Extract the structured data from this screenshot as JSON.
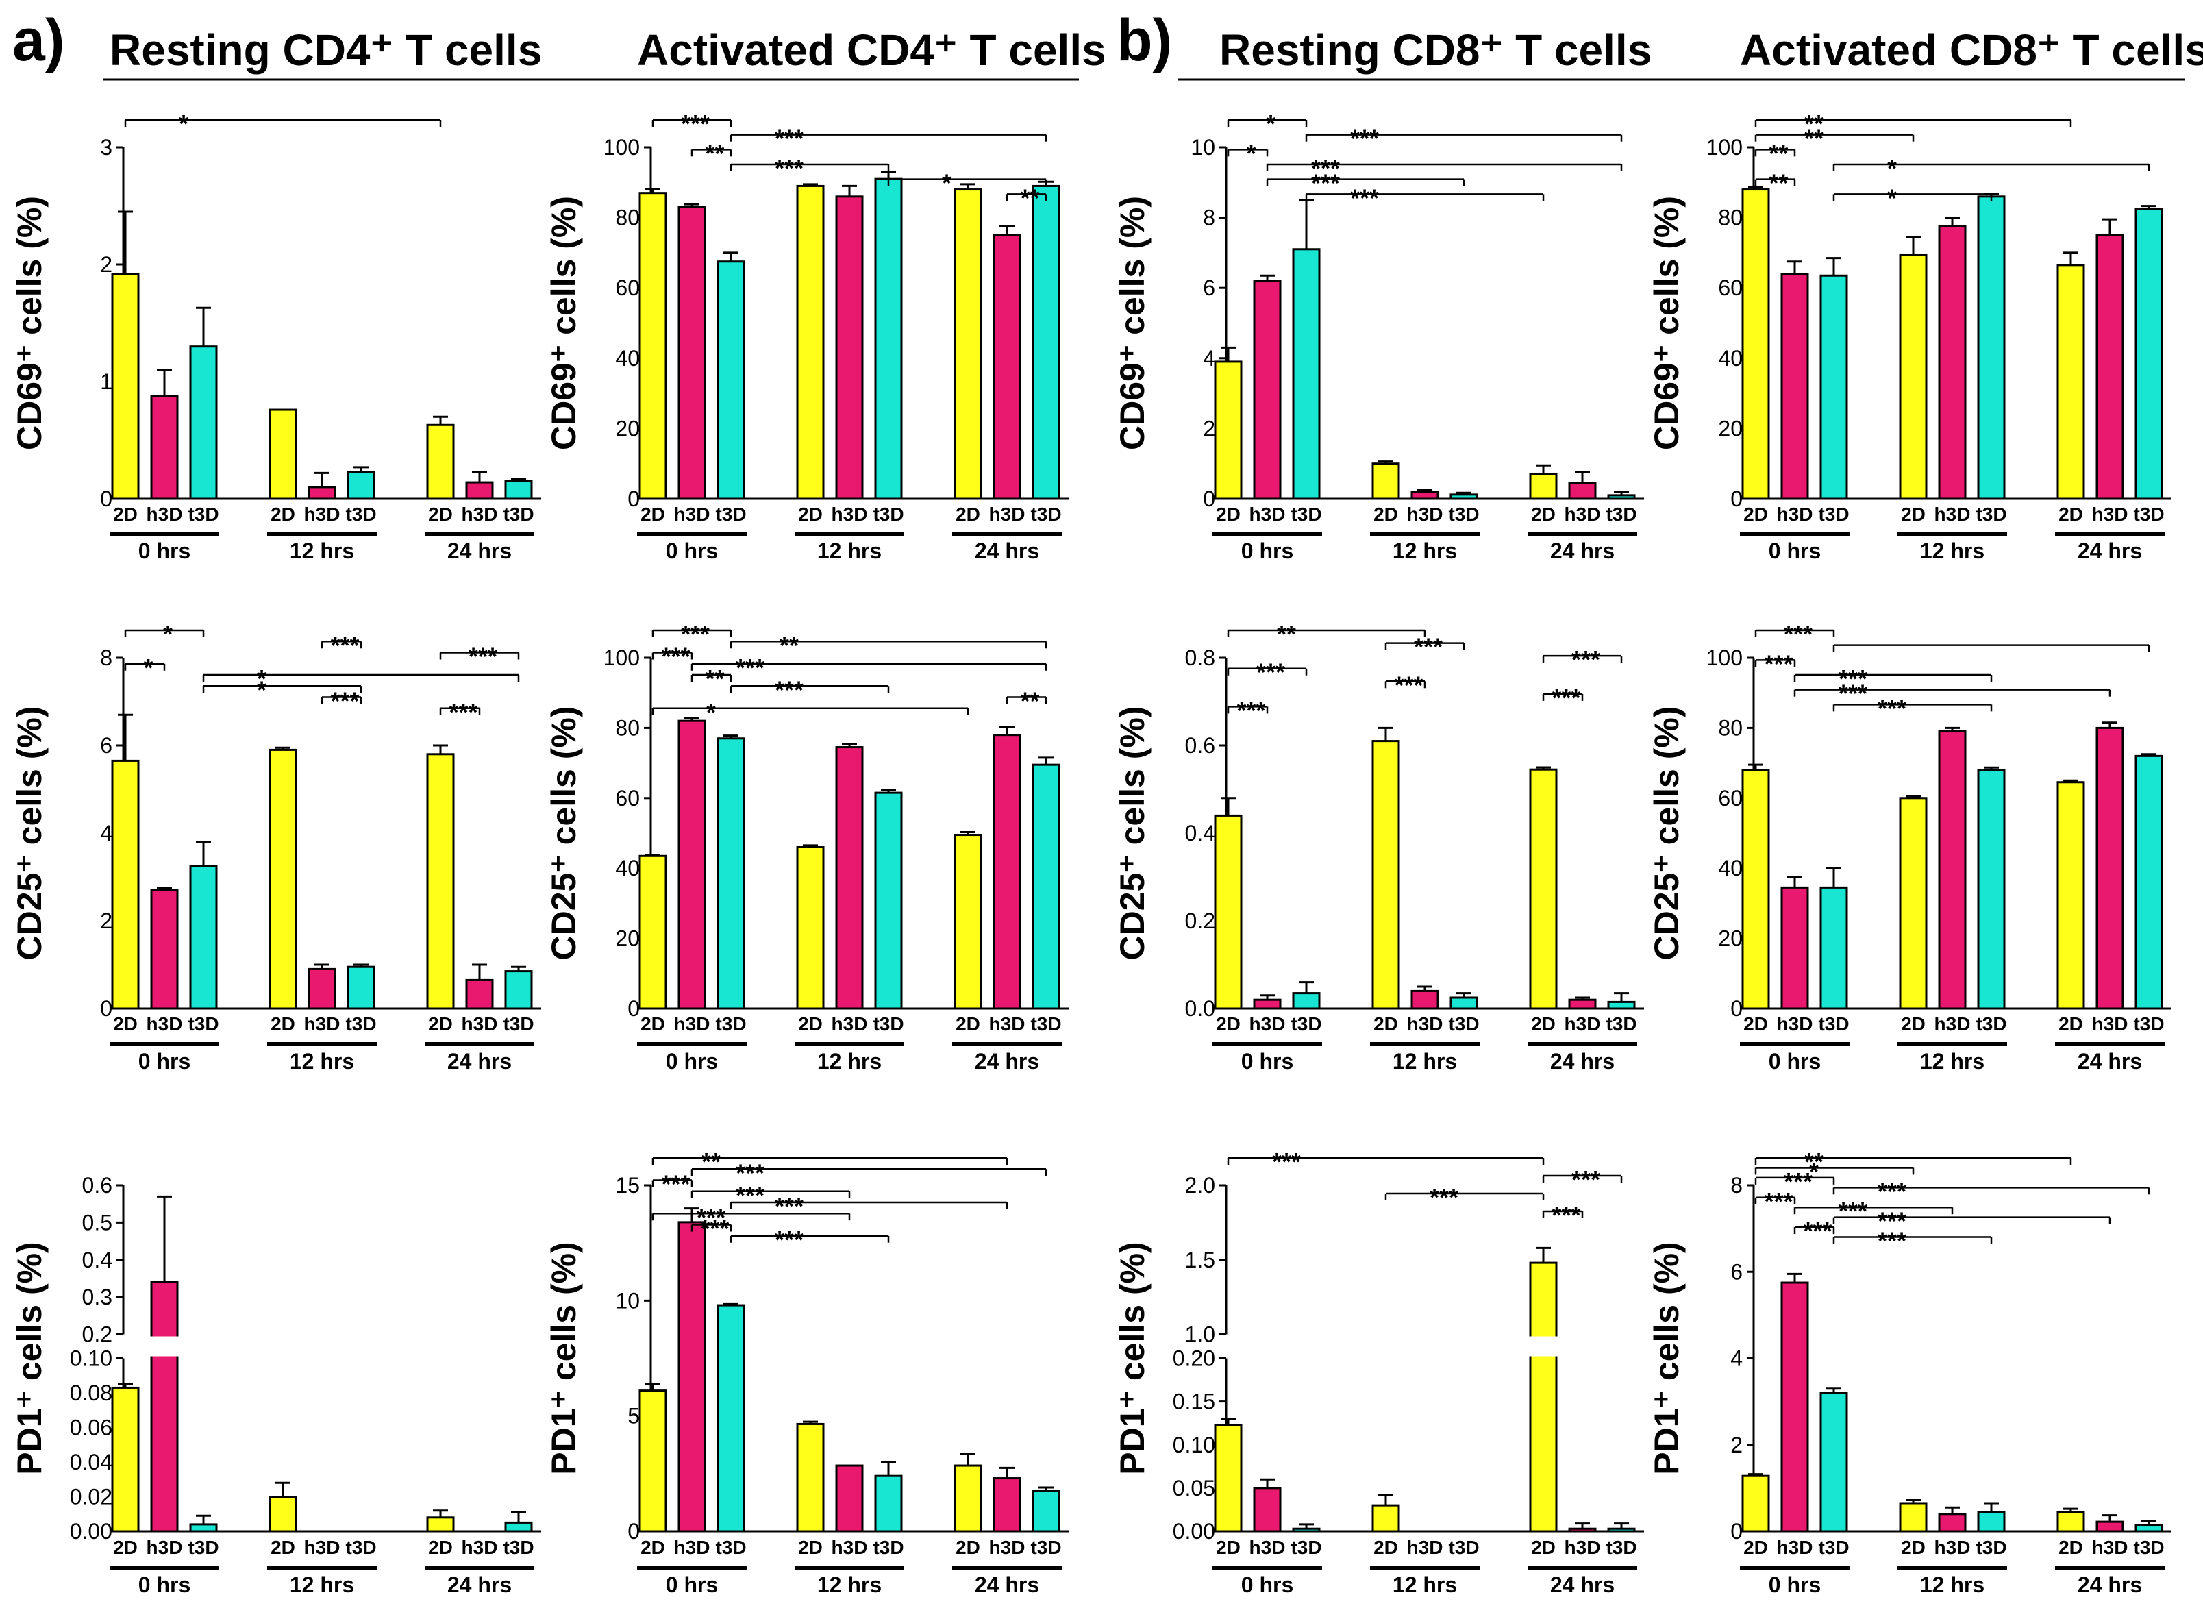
{
  "figure": {
    "panel_labels": [
      "a)",
      "b)"
    ],
    "column_titles": [
      "Resting CD4⁺ T cells",
      "Activated  CD4⁺ T cells",
      "Resting CD8⁺ T cells",
      "Activated CD8⁺ T cells"
    ],
    "row_labels": [
      "CD69⁺ cells (%)",
      "CD25⁺ cells (%)",
      "PD1⁺ cells (%)"
    ],
    "sample_labels": [
      "2D",
      "h3D",
      "t3D"
    ],
    "time_labels": [
      "0 hrs",
      "12 hrs",
      "24 hrs"
    ],
    "colors": {
      "2D": "#ffff1a",
      "h3D": "#e8196e",
      "t3D": "#19e6d2"
    }
  },
  "chart_data": [
    {
      "id": "r1c1",
      "type": "bar",
      "ylabel": "CD69⁺ cells (%)",
      "title": "Resting CD4⁺ T cells",
      "ylim": [
        0,
        3
      ],
      "yticks": [
        "0",
        "1",
        "2",
        "3"
      ],
      "values": [
        [
          1.92,
          0.88,
          1.3
        ],
        [
          0.76,
          0.1,
          0.23
        ],
        [
          0.63,
          0.14,
          0.15
        ]
      ],
      "errors": [
        [
          0.53,
          0.22,
          0.33
        ],
        [
          0,
          0.12,
          0.04
        ],
        [
          0.07,
          0.09,
          0.02
        ]
      ],
      "sig": [
        {
          "a": 0,
          "b": 6,
          "t": "*"
        }
      ]
    },
    {
      "id": "r1c2",
      "type": "bar",
      "ylabel": "CD69⁺ cells (%)",
      "title": "Activated  CD4⁺ T cells",
      "ylim": [
        0,
        100
      ],
      "yticks": [
        "0",
        "20",
        "40",
        "60",
        "80",
        "100"
      ],
      "values": [
        [
          87,
          83,
          67.5
        ],
        [
          89,
          86,
          91
        ],
        [
          88,
          75,
          89
        ]
      ],
      "errors": [
        [
          1,
          0.8,
          2.5
        ],
        [
          0.5,
          3,
          2
        ],
        [
          1.5,
          2.5,
          1.2
        ]
      ],
      "sig": [
        {
          "a": 0,
          "b": 2,
          "t": "***"
        },
        {
          "a": 2,
          "b": 8,
          "t": "***"
        },
        {
          "a": 1,
          "b": 2,
          "t": "**"
        },
        {
          "a": 2,
          "b": 5,
          "t": "***"
        },
        {
          "a": 5,
          "b": 8,
          "t": "*"
        },
        {
          "a": 7,
          "b": 8,
          "t": "**"
        }
      ]
    },
    {
      "id": "r1c3",
      "type": "bar",
      "ylabel": "CD69⁺ cells (%)",
      "title": "Resting CD8⁺ T cells",
      "ylim": [
        0,
        10
      ],
      "yticks": [
        "0",
        "2",
        "4",
        "6",
        "8",
        "10"
      ],
      "values": [
        [
          3.9,
          6.2,
          7.1
        ],
        [
          1.0,
          0.2,
          0.12
        ],
        [
          0.7,
          0.45,
          0.1
        ]
      ],
      "errors": [
        [
          0.4,
          0.15,
          1.4
        ],
        [
          0.06,
          0.05,
          0.05
        ],
        [
          0.25,
          0.3,
          0.1
        ]
      ],
      "sig": [
        {
          "a": 0,
          "b": 2,
          "t": "*"
        },
        {
          "a": 2,
          "b": 8,
          "t": "***"
        },
        {
          "a": 0,
          "b": 1,
          "t": "*"
        },
        {
          "a": 1,
          "b": 8,
          "t": "***"
        },
        {
          "a": 1,
          "b": 5,
          "t": "***"
        },
        {
          "a": 2,
          "b": 6,
          "t": "***"
        }
      ]
    },
    {
      "id": "r1c4",
      "type": "bar",
      "ylabel": "CD69⁺ cells (%)",
      "title": "Activated CD8⁺ T cells",
      "ylim": [
        0,
        100
      ],
      "yticks": [
        "0",
        "20",
        "40",
        "60",
        "80",
        "100"
      ],
      "values": [
        [
          88,
          64,
          63.5
        ],
        [
          69.5,
          77.5,
          86
        ],
        [
          66.5,
          75,
          82.5
        ]
      ],
      "errors": [
        [
          0.8,
          3.5,
          5
        ],
        [
          5,
          2.5,
          0.8
        ],
        [
          3.5,
          4.5,
          0.8
        ]
      ],
      "sig": [
        {
          "a": 0,
          "b": 6,
          "t": "**"
        },
        {
          "a": 0,
          "b": 3,
          "t": "**"
        },
        {
          "a": 0,
          "b": 1,
          "t": "**"
        },
        {
          "a": 2,
          "b": 8,
          "t": "*"
        },
        {
          "a": 0,
          "b": 1,
          "t": "**"
        },
        {
          "a": 2,
          "b": 5,
          "t": "*"
        }
      ]
    },
    {
      "id": "r2c1",
      "type": "bar",
      "ylabel": "CD25⁺ cells (%)",
      "ylim": [
        0,
        8
      ],
      "yticks": [
        "0",
        "2",
        "4",
        "6",
        "8"
      ],
      "values": [
        [
          5.65,
          2.7,
          3.25
        ],
        [
          5.9,
          0.9,
          0.95
        ],
        [
          5.8,
          0.65,
          0.85
        ]
      ],
      "errors": [
        [
          1.05,
          0.05,
          0.55
        ],
        [
          0.05,
          0.1,
          0.05
        ],
        [
          0.2,
          0.35,
          0.1
        ]
      ],
      "sig": [
        {
          "a": 0,
          "b": 2,
          "t": "*"
        },
        {
          "a": 4,
          "b": 5,
          "t": "***"
        },
        {
          "a": 6,
          "b": 8,
          "t": "***"
        },
        {
          "a": 0,
          "b": 1,
          "t": "*"
        },
        {
          "a": 2,
          "b": 8,
          "t": "*"
        },
        {
          "a": 2,
          "b": 5,
          "t": "*"
        },
        {
          "a": 4,
          "b": 5,
          "t": "***"
        },
        {
          "a": 6,
          "b": 7,
          "t": "***"
        }
      ]
    },
    {
      "id": "r2c2",
      "type": "bar",
      "ylabel": "CD25⁺ cells (%)",
      "ylim": [
        0,
        100
      ],
      "yticks": [
        "0",
        "20",
        "40",
        "60",
        "80",
        "100"
      ],
      "values": [
        [
          43.5,
          82,
          77
        ],
        [
          46,
          74.5,
          61.5
        ],
        [
          49.5,
          78,
          69.5
        ]
      ],
      "errors": [
        [
          0.3,
          0.8,
          0.8
        ],
        [
          0.5,
          0.8,
          0.7
        ],
        [
          0.8,
          2.3,
          2
        ]
      ],
      "sig": [
        {
          "a": 0,
          "b": 2,
          "t": "***"
        },
        {
          "a": 2,
          "b": 8,
          "t": "**"
        },
        {
          "a": 0,
          "b": 1,
          "t": "***"
        },
        {
          "a": 1,
          "b": 8,
          "t": "***"
        },
        {
          "a": 1,
          "b": 2,
          "t": "**"
        },
        {
          "a": 2,
          "b": 5,
          "t": "***"
        },
        {
          "a": 7,
          "b": 8,
          "t": "**"
        },
        {
          "a": 0,
          "b": 6,
          "t": "*"
        }
      ]
    },
    {
      "id": "r2c3",
      "type": "bar",
      "ylabel": "CD25⁺ cells (%)",
      "ylim": [
        0,
        0.8
      ],
      "yticks": [
        "0.0",
        "0.2",
        "0.4",
        "0.6",
        "0.8"
      ],
      "values": [
        [
          0.44,
          0.02,
          0.035
        ],
        [
          0.61,
          0.04,
          0.025
        ],
        [
          0.545,
          0.02,
          0.015
        ]
      ],
      "errors": [
        [
          0.04,
          0.01,
          0.025
        ],
        [
          0.03,
          0.01,
          0.01
        ],
        [
          0.005,
          0.005,
          0.02
        ]
      ],
      "sig": [
        {
          "a": 0,
          "b": 4,
          "t": "**"
        },
        {
          "a": 3,
          "b": 5,
          "t": "***"
        },
        {
          "a": 6,
          "b": 8,
          "t": "***"
        },
        {
          "a": 0,
          "b": 2,
          "t": "***"
        },
        {
          "a": 3,
          "b": 4,
          "t": "***"
        },
        {
          "a": 6,
          "b": 7,
          "t": "***"
        },
        {
          "a": 0,
          "b": 1,
          "t": "***"
        }
      ]
    },
    {
      "id": "r2c4",
      "type": "bar",
      "ylabel": "CD25⁺ cells (%)",
      "ylim": [
        0,
        100
      ],
      "yticks": [
        "0",
        "20",
        "40",
        "60",
        "80",
        "100"
      ],
      "values": [
        [
          68,
          34.5,
          34.5
        ],
        [
          60,
          79,
          68
        ],
        [
          64.5,
          80,
          72
        ]
      ],
      "errors": [
        [
          1.5,
          3,
          5.5
        ],
        [
          0.5,
          1,
          0.7
        ],
        [
          0.5,
          1.5,
          0.5
        ]
      ],
      "sig": [
        {
          "a": 0,
          "b": 2,
          "t": "***"
        },
        {
          "a": 2,
          "b": 8,
          "t": ""
        },
        {
          "a": 0,
          "b": 1,
          "t": "***"
        },
        {
          "a": 1,
          "b": 5,
          "t": "***"
        },
        {
          "a": 1,
          "b": 7,
          "t": "***"
        },
        {
          "a": 2,
          "b": 5,
          "t": "***"
        }
      ]
    },
    {
      "id": "r3c1",
      "type": "bar",
      "ylabel": "PD1⁺ cells (%)",
      "broken_axis": true,
      "ylim_lower": [
        0,
        0.1
      ],
      "ylim_upper": [
        0.2,
        0.6
      ],
      "yticks_lower": [
        "0.00",
        "0.02",
        "0.04",
        "0.06",
        "0.08",
        "0.10"
      ],
      "yticks_upper": [
        "0.2",
        "0.3",
        "0.4",
        "0.5",
        "0.6"
      ],
      "values": [
        [
          0.083,
          0.34,
          0.004
        ],
        [
          0.02,
          0,
          0
        ],
        [
          0.008,
          0,
          0.005
        ]
      ],
      "errors": [
        [
          0.002,
          0.23,
          0.005
        ],
        [
          0.008,
          0,
          0
        ],
        [
          0.004,
          0,
          0.006
        ]
      ],
      "sig": []
    },
    {
      "id": "r3c2",
      "type": "bar",
      "ylabel": "PD1⁺ cells (%)",
      "ylim": [
        0,
        15
      ],
      "yticks": [
        "0",
        "5",
        "10",
        "15"
      ],
      "values": [
        [
          6.1,
          13.4,
          9.8
        ],
        [
          4.65,
          2.85,
          2.4
        ],
        [
          2.85,
          2.3,
          1.75
        ]
      ],
      "errors": [
        [
          0.3,
          0.6,
          0.05
        ],
        [
          0.1,
          0,
          0.6
        ],
        [
          0.5,
          0.45,
          0.15
        ]
      ],
      "sig": [
        {
          "a": 0,
          "b": 7,
          "t": "**"
        },
        {
          "a": 1,
          "b": 8,
          "t": "***"
        },
        {
          "a": 0,
          "b": 1,
          "t": "***"
        },
        {
          "a": 1,
          "b": 4,
          "t": "***"
        },
        {
          "a": 2,
          "b": 7,
          "t": "***"
        },
        {
          "a": 0,
          "b": 4,
          "t": "***"
        },
        {
          "a": 1,
          "b": 2,
          "t": "***"
        },
        {
          "a": 2,
          "b": 5,
          "t": "***"
        }
      ]
    },
    {
      "id": "r3c3",
      "type": "bar",
      "ylabel": "PD1⁺ cells (%)",
      "broken_axis": true,
      "ylim_lower": [
        0,
        0.2
      ],
      "ylim_upper": [
        1.0,
        2.0
      ],
      "yticks_lower": [
        "0.00",
        "0.05",
        "0.10",
        "0.15",
        "0.20"
      ],
      "yticks_upper": [
        "1.0",
        "1.5",
        "2.0"
      ],
      "values": [
        [
          0.123,
          0.05,
          0.003
        ],
        [
          0.03,
          0,
          0
        ],
        [
          1.48,
          0.003,
          0.003
        ]
      ],
      "errors": [
        [
          0.007,
          0.01,
          0.005
        ],
        [
          0.012,
          0,
          0
        ],
        [
          0.1,
          0.006,
          0.006
        ]
      ],
      "sig": [
        {
          "a": 0,
          "b": 6,
          "t": "***"
        },
        {
          "a": 6,
          "b": 8,
          "t": "***"
        },
        {
          "a": 3,
          "b": 6,
          "t": "***"
        },
        {
          "a": 6,
          "b": 7,
          "t": "***"
        }
      ]
    },
    {
      "id": "r3c4",
      "type": "bar",
      "ylabel": "PD1⁺ cells (%)",
      "ylim": [
        0,
        8
      ],
      "yticks": [
        "0",
        "2",
        "4",
        "6",
        "8"
      ],
      "values": [
        [
          1.28,
          5.75,
          3.2
        ],
        [
          0.65,
          0.4,
          0.45
        ],
        [
          0.45,
          0.22,
          0.15
        ]
      ],
      "errors": [
        [
          0.04,
          0.2,
          0.1
        ],
        [
          0.07,
          0.15,
          0.2
        ],
        [
          0.07,
          0.15,
          0.08
        ]
      ],
      "sig": [
        {
          "a": 0,
          "b": 6,
          "t": "**"
        },
        {
          "a": 0,
          "b": 3,
          "t": "*"
        },
        {
          "a": 0,
          "b": 2,
          "t": "***"
        },
        {
          "a": 2,
          "b": 8,
          "t": "***"
        },
        {
          "a": 0,
          "b": 1,
          "t": "***"
        },
        {
          "a": 1,
          "b": 4,
          "t": "***"
        },
        {
          "a": 2,
          "b": 7,
          "t": "***"
        },
        {
          "a": 1,
          "b": 2,
          "t": "***"
        },
        {
          "a": 2,
          "b": 5,
          "t": "***"
        }
      ]
    }
  ]
}
